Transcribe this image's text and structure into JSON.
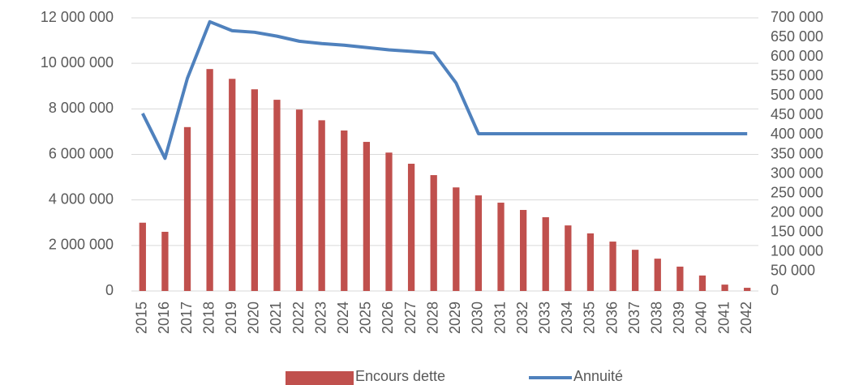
{
  "chart_data": {
    "type": "bar-line",
    "categories": [
      "2015",
      "2016",
      "2017",
      "2018",
      "2019",
      "2020",
      "2021",
      "2022",
      "2023",
      "2024",
      "2025",
      "2026",
      "2027",
      "2028",
      "2029",
      "2030",
      "2031",
      "2032",
      "2033",
      "2034",
      "2035",
      "2036",
      "2037",
      "2038",
      "2039",
      "2040",
      "2041",
      "2042"
    ],
    "series": [
      {
        "name": "Encours dette",
        "type": "bar",
        "color": "#c0504d",
        "axis": "y",
        "values": [
          3000000,
          2600000,
          7200000,
          9750000,
          9320000,
          8860000,
          8400000,
          7970000,
          7500000,
          7050000,
          6550000,
          6080000,
          5590000,
          5090000,
          4550000,
          4200000,
          3880000,
          3560000,
          3240000,
          2880000,
          2530000,
          2170000,
          1810000,
          1420000,
          1070000,
          680000,
          280000,
          140000
        ]
      },
      {
        "name": "Annuité",
        "type": "line",
        "color": "#4f81bd",
        "axis": "y2",
        "values": [
          455000,
          340000,
          545000,
          690000,
          667000,
          663000,
          653000,
          640000,
          634000,
          630000,
          624000,
          618000,
          614000,
          610000,
          533000,
          403000,
          403000,
          403000,
          403000,
          403000,
          403000,
          403000,
          403000,
          403000,
          403000,
          403000,
          403000,
          403000
        ]
      }
    ],
    "ylim": [
      0,
      12000000
    ],
    "yticks": [
      0,
      {
        "value": 2000000,
        "label": "2 000 000"
      },
      {
        "value": 4000000,
        "label": "4 000 000"
      },
      {
        "value": 6000000,
        "label": "6 000 000"
      },
      {
        "value": 8000000,
        "label": "8 000 000"
      },
      {
        "value": 10000000,
        "label": "10 000 000"
      },
      {
        "value": 12000000,
        "label": "12 000 000"
      }
    ],
    "y2lim": [
      0,
      700000
    ],
    "y2ticks": [
      0,
      {
        "value": 50000,
        "label": "50 000"
      },
      {
        "value": 100000,
        "label": "100 000"
      },
      {
        "value": 150000,
        "label": "150 000"
      },
      {
        "value": 200000,
        "label": "200 000"
      },
      {
        "value": 250000,
        "label": "250 000"
      },
      {
        "value": 300000,
        "label": "300 000"
      },
      {
        "value": 350000,
        "label": "350 000"
      },
      {
        "value": 400000,
        "label": "400 000"
      },
      {
        "value": 450000,
        "label": "450 000"
      },
      {
        "value": 500000,
        "label": "500 000"
      },
      {
        "value": 550000,
        "label": "550 000"
      },
      {
        "value": 600000,
        "label": "600 000"
      },
      {
        "value": 650000,
        "label": "650 000"
      },
      {
        "value": 700000,
        "label": "700 000"
      }
    ],
    "grid": true,
    "legend": "bottom"
  }
}
